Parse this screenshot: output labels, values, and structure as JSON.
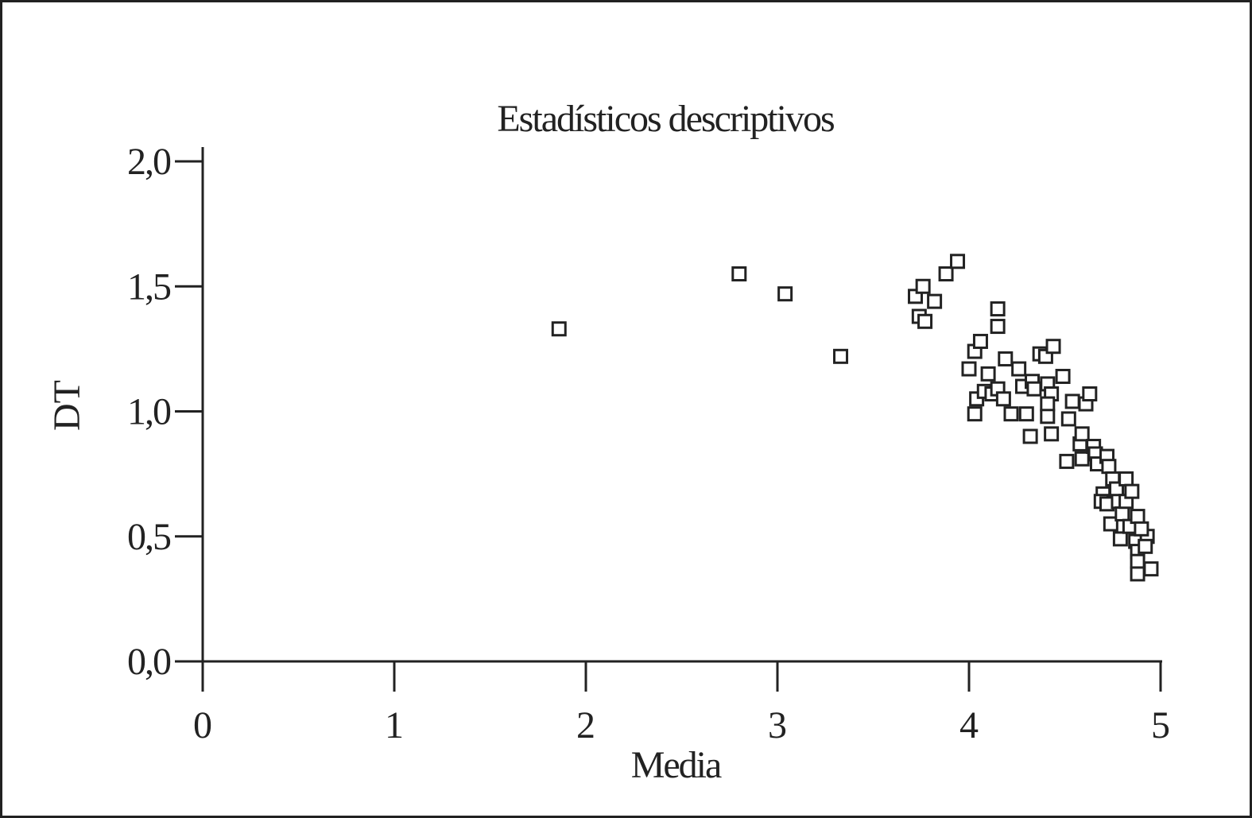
{
  "chart_data": {
    "type": "scatter",
    "title": "Estadísticos descriptivos",
    "x_label": "Media",
    "y_label": "DT",
    "xlim": [
      0,
      5
    ],
    "ylim": [
      0,
      2
    ],
    "xticks": [
      0,
      1,
      2,
      3,
      4,
      5
    ],
    "yticks": [
      {
        "value": 0,
        "label": "0,0"
      },
      {
        "value": 0.5,
        "label": "0,5"
      },
      {
        "value": 1,
        "label": "1,0"
      },
      {
        "value": 1.5,
        "label": "1,5"
      },
      {
        "value": 2,
        "label": "2,0"
      }
    ],
    "color": "#222222",
    "x": [
      1.86,
      2.8,
      3.04,
      3.33,
      3.72,
      3.76,
      3.74,
      3.77,
      3.82,
      3.88,
      3.94,
      4.15,
      4.15,
      4.0,
      4.03,
      4.06,
      4.04,
      4.03,
      4.1,
      4.08,
      4.12,
      4.15,
      4.18,
      4.19,
      4.22,
      4.26,
      4.28,
      4.3,
      4.33,
      4.34,
      4.32,
      4.37,
      4.4,
      4.44,
      4.41,
      4.43,
      4.41,
      4.41,
      4.43,
      4.49,
      4.52,
      4.54,
      4.51,
      4.58,
      4.59,
      4.59,
      4.61,
      4.63,
      4.65,
      4.66,
      4.67,
      4.72,
      4.73,
      4.75,
      4.7,
      4.69,
      4.72,
      4.74,
      4.77,
      4.78,
      4.8,
      4.79,
      4.82,
      4.82,
      4.85,
      4.84,
      4.88,
      4.87,
      4.88,
      4.88,
      4.88,
      4.93,
      4.92,
      4.95,
      4.9
    ],
    "y": [
      1.33,
      1.55,
      1.47,
      1.22,
      1.46,
      1.5,
      1.38,
      1.36,
      1.44,
      1.55,
      1.6,
      1.41,
      1.34,
      1.17,
      1.24,
      1.28,
      1.05,
      0.99,
      1.15,
      1.08,
      1.07,
      1.09,
      1.05,
      1.21,
      0.99,
      1.17,
      1.1,
      0.99,
      1.12,
      1.09,
      0.9,
      1.23,
      1.22,
      1.26,
      1.11,
      1.07,
      1.03,
      0.98,
      0.91,
      1.14,
      0.97,
      1.04,
      0.8,
      0.87,
      0.81,
      0.91,
      1.03,
      1.07,
      0.86,
      0.83,
      0.79,
      0.82,
      0.78,
      0.73,
      0.67,
      0.64,
      0.63,
      0.55,
      0.69,
      0.64,
      0.59,
      0.49,
      0.73,
      0.64,
      0.68,
      0.54,
      0.58,
      0.48,
      0.44,
      0.4,
      0.35,
      0.5,
      0.46,
      0.37,
      0.53
    ]
  }
}
